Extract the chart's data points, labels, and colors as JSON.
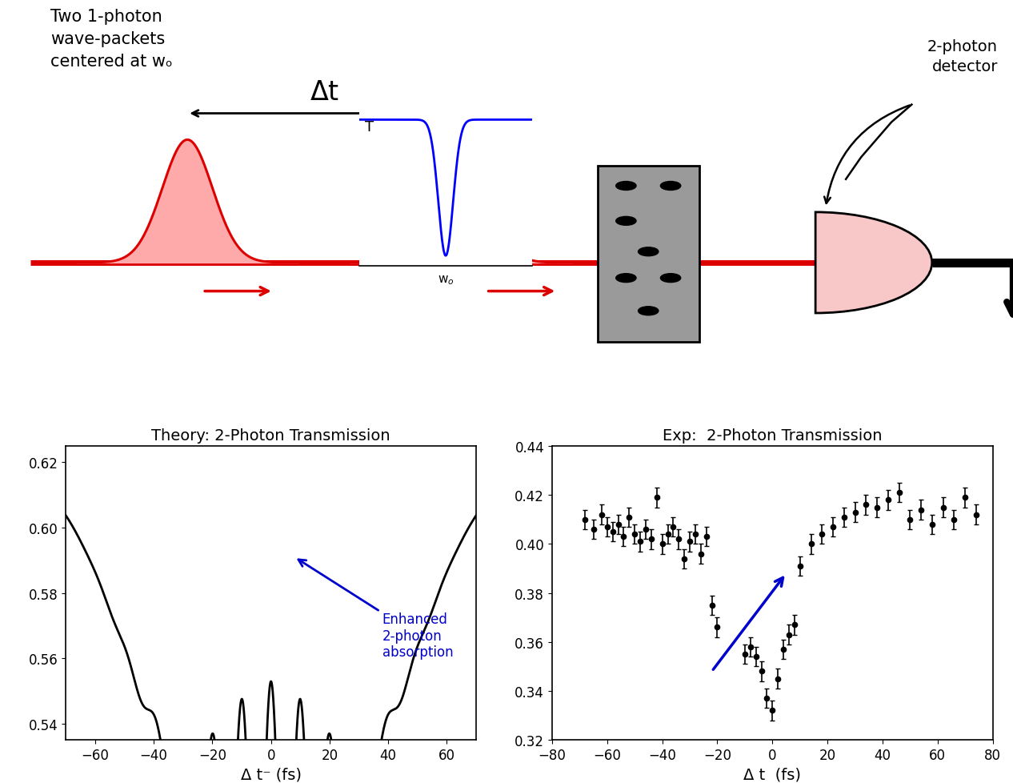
{
  "fig_width": 12.66,
  "fig_height": 9.79,
  "bg_color": "#ffffff",
  "theory_title": "Theory: 2-Photon Transmission",
  "theory_xlabel": "Δ t⁻ (fs)",
  "theory_xlim": [
    -70,
    70
  ],
  "theory_ylim": [
    0.535,
    0.625
  ],
  "theory_yticks": [
    0.54,
    0.56,
    0.58,
    0.6,
    0.62
  ],
  "theory_xticks": [
    -60,
    -40,
    -20,
    0,
    20,
    40,
    60
  ],
  "exp_title": "Exp:  2-Photon Transmission",
  "exp_xlabel": "Δ t  (fs)",
  "exp_xlim": [
    -80,
    80
  ],
  "exp_ylim": [
    0.32,
    0.44
  ],
  "exp_yticks": [
    0.32,
    0.34,
    0.36,
    0.38,
    0.4,
    0.42,
    0.44
  ],
  "exp_xticks": [
    -80,
    -60,
    -40,
    -20,
    0,
    20,
    40,
    60,
    80
  ],
  "annotation_text": "Enhanced\n2-photon\nabsorption",
  "annotation_color": "#0000cc",
  "label_text": "Two 1-photon\nwave-packets\ncentered at wₒ",
  "detector_label": "2-photon\ndetector",
  "pulse_color": "#dd0000",
  "pulse_fill_color": "#ffaaaa",
  "beam_color": "#dd0000",
  "sample_color": "#9a9a9a",
  "detector_color": "#f8c8c8",
  "exp_data_x": [
    -68,
    -65,
    -62,
    -60,
    -58,
    -56,
    -54,
    -52,
    -50,
    -48,
    -46,
    -44,
    -42,
    -40,
    -38,
    -36,
    -34,
    -32,
    -30,
    -28,
    -26,
    -24,
    -22,
    -20,
    -10,
    -8,
    -6,
    -4,
    -2,
    0,
    2,
    4,
    6,
    8,
    10,
    14,
    18,
    22,
    26,
    30,
    34,
    38,
    42,
    46,
    50,
    54,
    58,
    62,
    66,
    70,
    74
  ],
  "exp_data_y": [
    0.41,
    0.406,
    0.412,
    0.407,
    0.405,
    0.408,
    0.403,
    0.411,
    0.404,
    0.401,
    0.406,
    0.402,
    0.419,
    0.4,
    0.404,
    0.407,
    0.402,
    0.394,
    0.401,
    0.404,
    0.396,
    0.403,
    0.375,
    0.366,
    0.355,
    0.358,
    0.354,
    0.348,
    0.337,
    0.332,
    0.345,
    0.357,
    0.363,
    0.367,
    0.391,
    0.4,
    0.404,
    0.407,
    0.411,
    0.413,
    0.416,
    0.415,
    0.418,
    0.421,
    0.41,
    0.414,
    0.408,
    0.415,
    0.41,
    0.419,
    0.412
  ],
  "exp_data_yerr": [
    0.004,
    0.004,
    0.004,
    0.004,
    0.004,
    0.004,
    0.004,
    0.004,
    0.004,
    0.004,
    0.004,
    0.004,
    0.004,
    0.004,
    0.004,
    0.004,
    0.004,
    0.004,
    0.004,
    0.004,
    0.004,
    0.004,
    0.004,
    0.004,
    0.004,
    0.004,
    0.004,
    0.004,
    0.004,
    0.004,
    0.004,
    0.004,
    0.004,
    0.004,
    0.004,
    0.004,
    0.004,
    0.004,
    0.004,
    0.004,
    0.004,
    0.004,
    0.004,
    0.004,
    0.004,
    0.004,
    0.004,
    0.004,
    0.004,
    0.004,
    0.004
  ]
}
